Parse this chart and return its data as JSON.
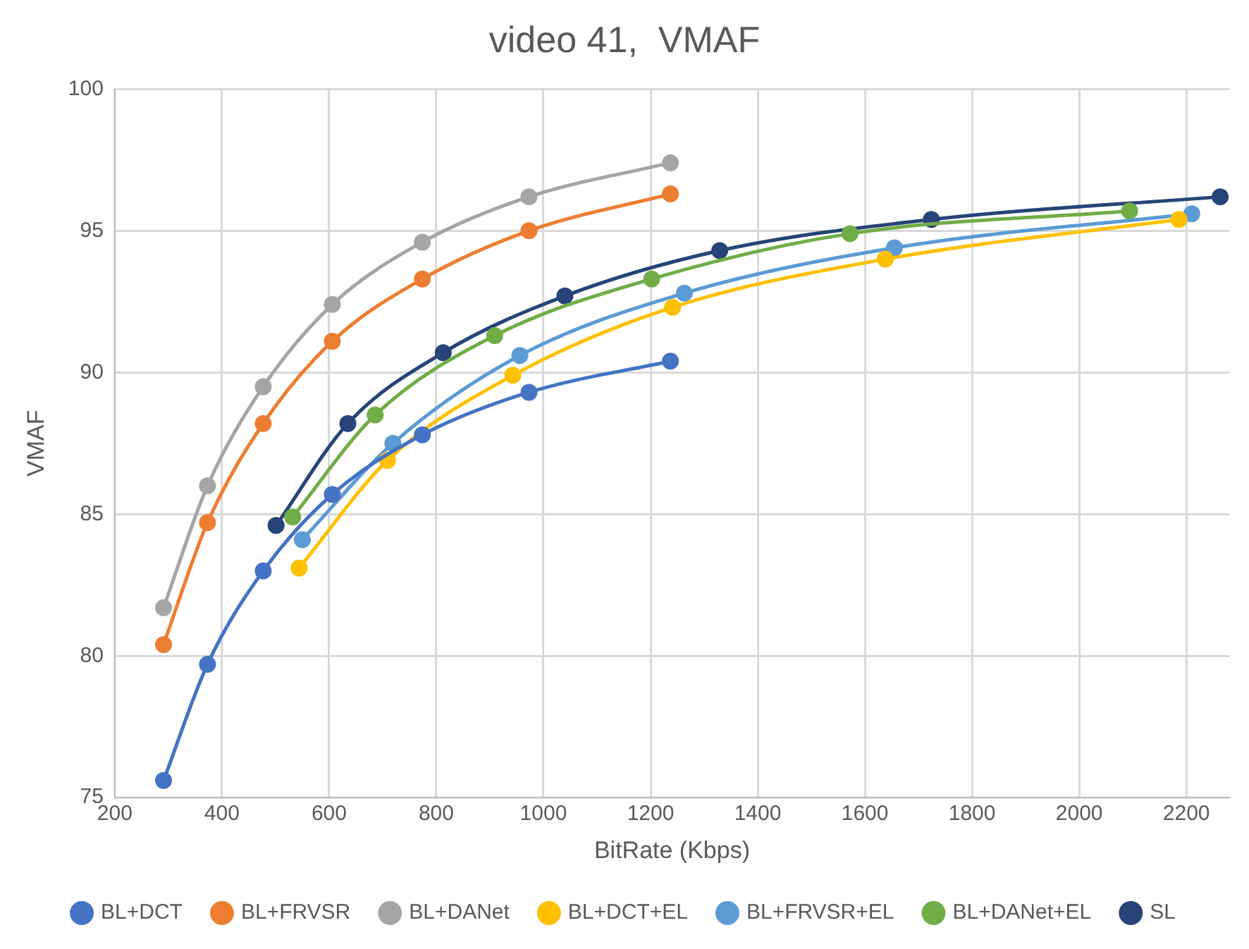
{
  "chart_data": {
    "type": "line",
    "title": "video 41,  VMAF",
    "xlabel": "BitRate (Kbps)",
    "ylabel": "VMAF",
    "xlim": [
      200,
      2280
    ],
    "xticks": [
      200,
      400,
      600,
      800,
      1000,
      1200,
      1400,
      1600,
      1800,
      2000,
      2200
    ],
    "ylim": [
      75,
      100
    ],
    "yticks": [
      75,
      80,
      85,
      90,
      95,
      100
    ],
    "grid": true,
    "legend": "bottom",
    "marker": "circle",
    "line_style": "solid",
    "series": [
      {
        "name": "BL+DCT",
        "color": "#4472c4",
        "x": [
          291,
          373,
          477,
          606,
          774,
          973,
          1237
        ],
        "values": [
          75.6,
          79.7,
          83.0,
          85.7,
          87.8,
          89.3,
          90.4
        ]
      },
      {
        "name": "BL+FRVSR",
        "color": "#ed7d31",
        "x": [
          291,
          373,
          477,
          606,
          774,
          973,
          1237
        ],
        "values": [
          80.4,
          84.7,
          88.2,
          91.1,
          93.3,
          95.0,
          96.3
        ]
      },
      {
        "name": "BL+DANet",
        "color": "#a5a5a5",
        "x": [
          291,
          373,
          477,
          606,
          774,
          973,
          1237
        ],
        "values": [
          81.7,
          86.0,
          89.5,
          92.4,
          94.6,
          96.2,
          97.4
        ]
      },
      {
        "name": "BL+DCT+EL",
        "color": "#ffc000",
        "x": [
          544,
          709,
          943,
          1241,
          1638,
          2186
        ],
        "values": [
          83.1,
          86.9,
          89.9,
          92.3,
          94.0,
          95.4
        ]
      },
      {
        "name": "BL+FRVSR+EL",
        "color": "#5b9bd5",
        "x": [
          550,
          719,
          956,
          1263,
          1655,
          2210
        ],
        "values": [
          84.1,
          87.5,
          90.6,
          92.8,
          94.4,
          95.6
        ]
      },
      {
        "name": "BL+DANet+EL",
        "color": "#70ad47",
        "x": [
          532,
          686,
          909,
          1202,
          1572,
          2094
        ],
        "values": [
          84.9,
          88.5,
          91.3,
          93.3,
          94.9,
          95.7
        ]
      },
      {
        "name": "SL",
        "color": "#264478",
        "x": [
          501,
          635,
          813,
          1040,
          1329,
          1724,
          2263
        ],
        "values": [
          84.6,
          88.2,
          90.7,
          92.7,
          94.3,
          95.4,
          96.2
        ]
      }
    ]
  }
}
